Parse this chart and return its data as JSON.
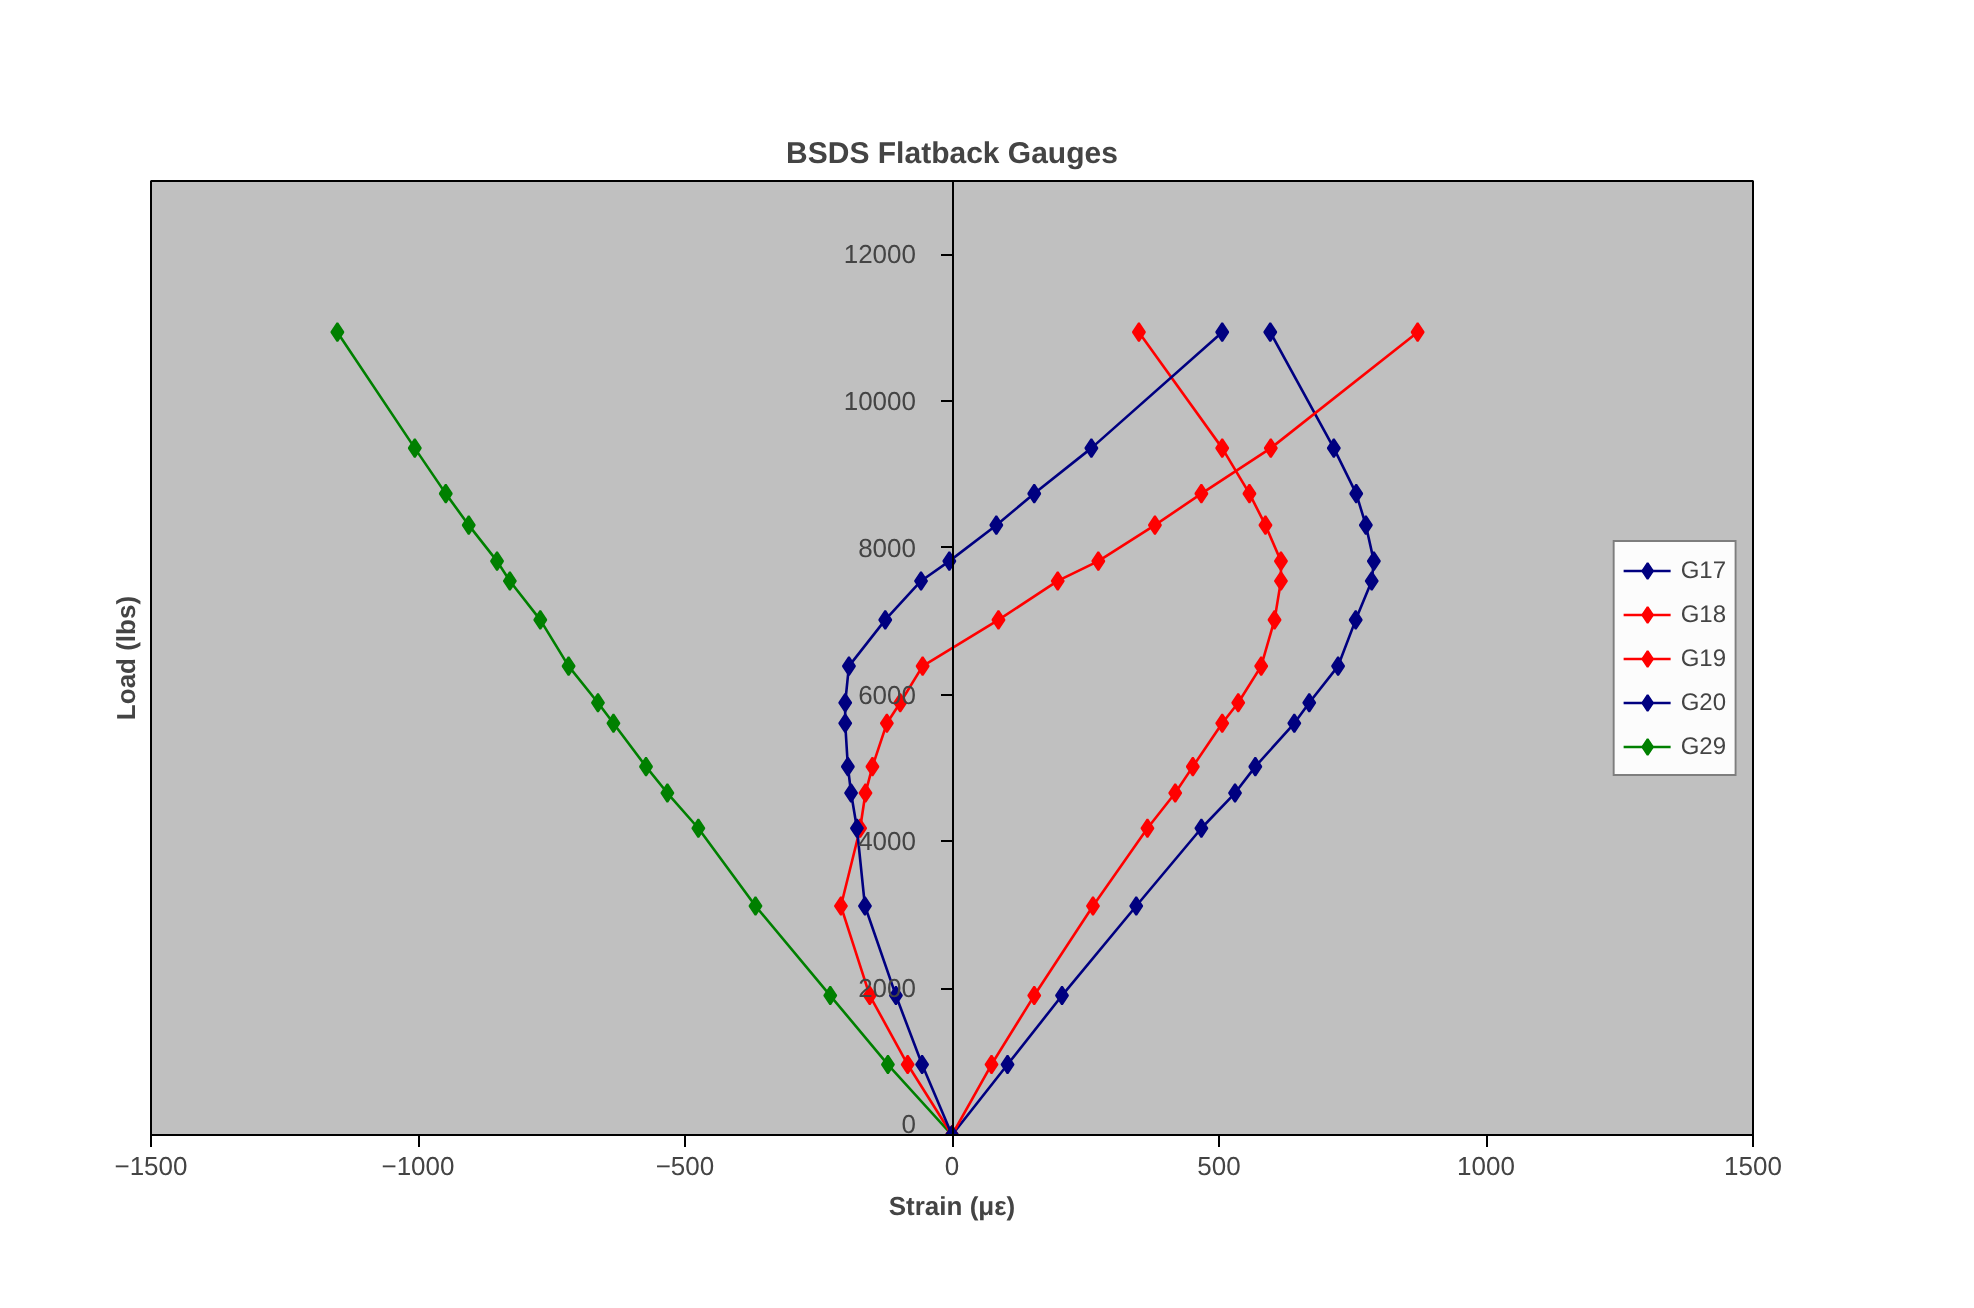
{
  "chart_data": {
    "type": "line",
    "title": "BSDS Flatback Gauges",
    "xlabel": "Strain (με)",
    "ylabel": "Load (lbs)",
    "xlim": [
      -1500,
      1500
    ],
    "xticks": [
      -1500,
      -1000,
      -500,
      0,
      500,
      1000,
      1500
    ],
    "ylim": [
      0,
      13000
    ],
    "yticks": [
      0,
      2000,
      4000,
      6000,
      8000,
      10000,
      12000
    ],
    "grid": false,
    "legend": "right",
    "marker": "diamond",
    "line_style": "solid",
    "series": [
      {
        "name": "G17",
        "color": "#000080",
        "x": [
          0,
          -56,
          -105,
          -163,
          -178,
          -189,
          -195,
          -200,
          -200,
          -193,
          -125,
          -58,
          -5,
          83,
          154,
          261,
          506
        ],
        "values": [
          0,
          960,
          1900,
          3120,
          4180,
          4660,
          5020,
          5610,
          5890,
          6390,
          7020,
          7550,
          7820,
          8310,
          8740,
          9360,
          10940
        ]
      },
      {
        "name": "G18",
        "color": "#ff0000",
        "x": [
          0,
          -83,
          -154,
          -208,
          -172,
          -162,
          -149,
          -122,
          -97,
          -55,
          87,
          198,
          274,
          380,
          467,
          597,
          872
        ],
        "values": [
          0,
          960,
          1900,
          3120,
          4180,
          4660,
          5020,
          5610,
          5890,
          6390,
          7020,
          7550,
          7820,
          8310,
          8740,
          9360,
          10940
        ]
      },
      {
        "name": "G19",
        "color": "#ff0000",
        "x": [
          0,
          74,
          154,
          264,
          366,
          418,
          451,
          506,
          536,
          579,
          604,
          616,
          616,
          587,
          557,
          506,
          350
        ],
        "values": [
          0,
          960,
          1900,
          3120,
          4180,
          4660,
          5020,
          5610,
          5890,
          6390,
          7020,
          7550,
          7820,
          8310,
          8740,
          9360,
          10940
        ]
      },
      {
        "name": "G20",
        "color": "#000080",
        "x": [
          0,
          104,
          206,
          345,
          467,
          530,
          568,
          641,
          669,
          723,
          756,
          786,
          790,
          775,
          757,
          715,
          596
        ],
        "values": [
          0,
          960,
          1900,
          3120,
          4180,
          4660,
          5020,
          5610,
          5890,
          6390,
          7020,
          7550,
          7820,
          8310,
          8740,
          9360,
          10940
        ]
      },
      {
        "name": "G29",
        "color": "#008000",
        "x": [
          0,
          -120,
          -228,
          -368,
          -475,
          -533,
          -573,
          -634,
          -663,
          -718,
          -771,
          -828,
          -852,
          -905,
          -948,
          -1006,
          -1151
        ],
        "values": [
          0,
          960,
          1900,
          3120,
          4180,
          4660,
          5020,
          5610,
          5890,
          6390,
          7020,
          7550,
          7820,
          8310,
          8740,
          9360,
          10940
        ]
      }
    ]
  }
}
